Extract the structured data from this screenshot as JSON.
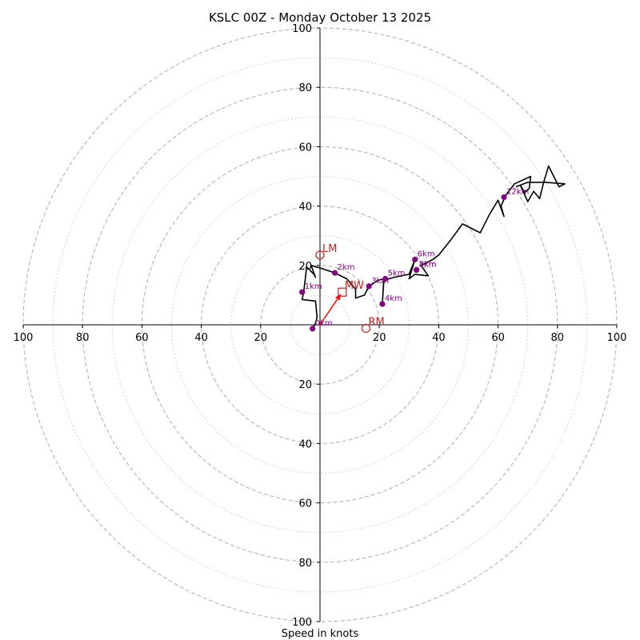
{
  "chart_data": {
    "type": "hodograph",
    "title": "KSLC 00Z - Monday October 13 2025",
    "xlabel": "Speed in knots",
    "range_knots": 100,
    "major_rings": [
      20,
      40,
      60,
      80,
      100
    ],
    "minor_rings": [
      10,
      30,
      50,
      70,
      90
    ],
    "x_ticks": [
      {
        "value": -100,
        "label": "100"
      },
      {
        "value": -80,
        "label": "80"
      },
      {
        "value": -60,
        "label": "60"
      },
      {
        "value": -40,
        "label": "40"
      },
      {
        "value": -20,
        "label": "20"
      },
      {
        "value": 20,
        "label": "20"
      },
      {
        "value": 40,
        "label": "40"
      },
      {
        "value": 60,
        "label": "60"
      },
      {
        "value": 80,
        "label": "80"
      },
      {
        "value": 100,
        "label": "100"
      }
    ],
    "y_ticks": [
      {
        "value": 100,
        "label": "100"
      },
      {
        "value": 80,
        "label": "80"
      },
      {
        "value": 60,
        "label": "60"
      },
      {
        "value": 40,
        "label": "40"
      },
      {
        "value": 20,
        "label": "20"
      },
      {
        "value": -20,
        "label": "20"
      },
      {
        "value": -40,
        "label": "40"
      },
      {
        "value": -60,
        "label": "60"
      },
      {
        "value": -80,
        "label": "80"
      },
      {
        "value": -100,
        "label": "100"
      }
    ],
    "trace": {
      "color": "#000000",
      "points": [
        [
          -2.5,
          -1.3
        ],
        [
          -1.5,
          0.5
        ],
        [
          -1.0,
          2.5
        ],
        [
          -1.5,
          8.0
        ],
        [
          -6.0,
          8.5
        ],
        [
          -5.5,
          11.0
        ],
        [
          -5.0,
          15.0
        ],
        [
          -4.5,
          19.5
        ],
        [
          -2.0,
          17.0
        ],
        [
          -1.5,
          16.0
        ],
        [
          -3.0,
          20.0
        ],
        [
          0.5,
          19.0
        ],
        [
          5.0,
          17.5
        ],
        [
          9.0,
          15.5
        ],
        [
          12.0,
          12.0
        ],
        [
          12.0,
          9.0
        ],
        [
          15.0,
          10.0
        ],
        [
          16.5,
          13.0
        ],
        [
          19.5,
          15.0
        ],
        [
          21.5,
          15.5
        ],
        [
          21.0,
          7.0
        ],
        [
          21.5,
          15.0
        ],
        [
          25.0,
          16.0
        ],
        [
          30.0,
          17.0
        ],
        [
          32.0,
          22.0
        ],
        [
          30.0,
          15.5
        ],
        [
          32.0,
          17.0
        ],
        [
          36.5,
          16.5
        ],
        [
          34.0,
          20.0
        ],
        [
          38.0,
          22.0
        ],
        [
          40.0,
          23.5
        ],
        [
          44.0,
          28.5
        ],
        [
          48.0,
          34.0
        ],
        [
          54.0,
          31.0
        ],
        [
          57.0,
          37.0
        ],
        [
          60.0,
          42.0
        ],
        [
          62.0,
          36.5
        ],
        [
          61.0,
          40.0
        ],
        [
          62.5,
          43.5
        ],
        [
          65.5,
          47.5
        ],
        [
          71.0,
          50.0
        ],
        [
          70.5,
          46.0
        ],
        [
          69.0,
          44.5
        ],
        [
          67.5,
          47.0
        ],
        [
          70.0,
          41.5
        ],
        [
          72.0,
          45.0
        ],
        [
          74.0,
          42.5
        ],
        [
          75.5,
          48.5
        ],
        [
          77.0,
          53.5
        ],
        [
          80.5,
          46.5
        ],
        [
          82.5,
          47.5
        ],
        [
          76.0,
          48.0
        ],
        [
          70.0,
          48.0
        ],
        [
          66.0,
          46.5
        ]
      ]
    },
    "height_markers": {
      "color": "#800080",
      "points": [
        {
          "label": "0km",
          "u": -2.5,
          "v": -1.3
        },
        {
          "label": "1km",
          "u": -6.0,
          "v": 11.0
        },
        {
          "label": "2km",
          "u": 5.0,
          "v": 17.5
        },
        {
          "label": "3km",
          "u": 16.5,
          "v": 13.0
        },
        {
          "label": "4km",
          "u": 21.0,
          "v": 7.0
        },
        {
          "label": "5km",
          "u": 22.0,
          "v": 15.5
        },
        {
          "label": "6km",
          "u": 32.0,
          "v": 22.0
        },
        {
          "label": "7km",
          "u": 32.5,
          "v": 18.5
        },
        {
          "label": "8km",
          "u": 32.5,
          "v": 18.5
        },
        {
          "label": "12km",
          "u": 62.0,
          "v": 43.0
        }
      ]
    },
    "storm_motion": {
      "color": "#b22222",
      "markers": [
        {
          "label": "LM",
          "u": 0.0,
          "v": 23.5,
          "shape": "circle"
        },
        {
          "label": "MW",
          "u": 7.5,
          "v": 11.0,
          "shape": "square"
        },
        {
          "label": "RM",
          "u": 15.5,
          "v": -1.2,
          "shape": "circle"
        }
      ],
      "arrow": {
        "from": [
          0.0,
          0.0
        ],
        "to": [
          7.0,
          10.3
        ],
        "color": "#ff0000"
      }
    }
  }
}
